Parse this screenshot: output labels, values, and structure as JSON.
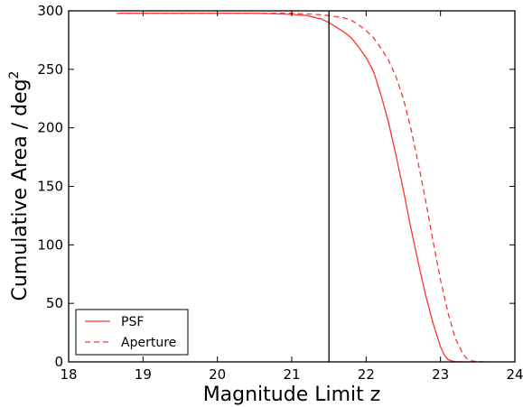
{
  "chart_data": {
    "type": "line",
    "xlabel": "Magnitude Limit z",
    "ylabel": "Cumulative Area / deg",
    "ylabel_superscript": "2",
    "xlim": [
      18,
      24
    ],
    "ylim": [
      0,
      300
    ],
    "xticks": [
      18,
      19,
      20,
      21,
      22,
      23,
      24
    ],
    "yticks": [
      0,
      50,
      100,
      150,
      200,
      250,
      300
    ],
    "grid": false,
    "legend_position": "lower-left",
    "vline_x": 21.5,
    "colors": {
      "series": "#ff3333",
      "vline": "#000000",
      "frame": "#000000"
    },
    "series": [
      {
        "name": "PSF",
        "style": "solid",
        "x": [
          18.65,
          19.5,
          20.5,
          21.0,
          21.2,
          21.4,
          21.5,
          21.6,
          21.7,
          21.8,
          21.9,
          22.0,
          22.1,
          22.2,
          22.3,
          22.4,
          22.5,
          22.6,
          22.7,
          22.8,
          22.9,
          23.0,
          23.05,
          23.1,
          23.15,
          23.2,
          23.3,
          23.4
        ],
        "y": [
          298,
          298,
          298,
          297,
          296,
          293,
          290,
          286,
          282,
          277,
          269,
          260,
          248,
          228,
          205,
          177,
          147,
          115,
          85,
          57,
          33,
          13,
          6,
          2,
          0.8,
          0.3,
          0,
          0
        ]
      },
      {
        "name": "Aperture",
        "style": "dashed",
        "x": [
          18.65,
          20.5,
          21.0,
          21.3,
          21.5,
          21.6,
          21.7,
          21.8,
          21.9,
          22.0,
          22.1,
          22.2,
          22.3,
          22.4,
          22.5,
          22.6,
          22.7,
          22.8,
          22.9,
          23.0,
          23.1,
          23.2,
          23.3,
          23.35,
          23.4,
          23.5,
          23.6,
          23.65
        ],
        "y": [
          298,
          298,
          298,
          297,
          296,
          295,
          294,
          292,
          288,
          283,
          277,
          268,
          258,
          244,
          225,
          200,
          170,
          138,
          103,
          70,
          42,
          20,
          7,
          3,
          1,
          0.2,
          0,
          0
        ]
      }
    ]
  }
}
